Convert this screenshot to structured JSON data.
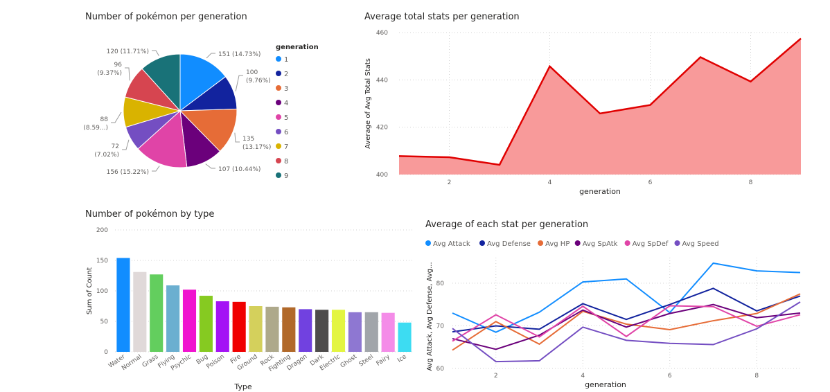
{
  "chart_data": [
    {
      "type": "pie",
      "title": "Number of pokémon per generation",
      "legend_title": "generation",
      "legend_position": "right",
      "categories": [
        "1",
        "2",
        "3",
        "4",
        "5",
        "6",
        "7",
        "8",
        "9"
      ],
      "values": [
        151,
        100,
        135,
        107,
        156,
        72,
        88,
        96,
        120
      ],
      "slice_labels": [
        "151 (14.73%)",
        "100 (9.76%)",
        "135 (13.17%)",
        "107 (10.44%)",
        "156 (15.22%)",
        "72 (7.02%)",
        "88 (8.59...)",
        "96 (9.37%)",
        "120 (11.71%)"
      ],
      "colors": [
        "#118DFF",
        "#12239E",
        "#E66C37",
        "#6B007B",
        "#E044A7",
        "#744EC2",
        "#D9B300",
        "#D64550",
        "#197278"
      ]
    },
    {
      "type": "area",
      "title": "Average total stats per generation",
      "xlabel": "generation",
      "ylabel": "Average of Avg Total Stats",
      "x": [
        1,
        2,
        3,
        4,
        5,
        6,
        7,
        8,
        9
      ],
      "y": [
        407.8,
        407.3,
        404.1,
        445.7,
        425.8,
        429.4,
        449.6,
        439.3,
        457.5
      ],
      "xlim": [
        1,
        9
      ],
      "ylim": [
        400,
        460
      ],
      "xticks": [
        "2",
        "4",
        "6",
        "8"
      ],
      "yticks": [
        "400",
        "420",
        "440",
        "460"
      ],
      "grid": true,
      "colors": {
        "line": "#E00000",
        "fill": "#F89A9A"
      }
    },
    {
      "type": "bar",
      "title": "Number of pokémon by type",
      "xlabel": "Type",
      "ylabel": "Sum of Count",
      "categories": [
        "Water",
        "Normal",
        "Grass",
        "Flying",
        "Psychic",
        "Bug",
        "Poison",
        "Fire",
        "Ground",
        "Rock",
        "Fighting",
        "Dragon",
        "Dark",
        "Electric",
        "Ghost",
        "Steel",
        "Fairy",
        "Ice"
      ],
      "values": [
        154,
        131,
        127,
        109,
        102,
        92,
        83,
        82,
        75,
        74,
        73,
        70,
        69,
        69,
        65,
        65,
        64,
        48
      ],
      "ylim": [
        0,
        200
      ],
      "yticks": [
        "0",
        "50",
        "100",
        "150",
        "200"
      ],
      "grid": true,
      "colors": [
        "#118DFF",
        "#E0D9D9",
        "#63CE5E",
        "#6BAFD0",
        "#F013CF",
        "#86CA21",
        "#A412F5",
        "#F00000",
        "#D4D05C",
        "#AEA98B",
        "#B1692A",
        "#7141E0",
        "#4E4C4C",
        "#E3F542",
        "#8E77D2",
        "#A1A5AA",
        "#F48CE8",
        "#3DDCF2"
      ]
    },
    {
      "type": "line",
      "title": "Average of each stat per generation",
      "xlabel": "generation",
      "ylabel": "Avg Attack, Avg Defense, Avg...",
      "legend_position": "top",
      "x": [
        1,
        2,
        3,
        4,
        5,
        6,
        7,
        8,
        9
      ],
      "xlim": [
        1,
        9
      ],
      "ylim": [
        60,
        86
      ],
      "xticks": [
        "2",
        "4",
        "6",
        "8"
      ],
      "yticks": [
        "60",
        "70",
        "80"
      ],
      "grid": true,
      "series": [
        {
          "name": "Avg Attack",
          "color": "#118DFF",
          "values": [
            73.0,
            68.5,
            73.2,
            80.3,
            81.0,
            73.1,
            84.7,
            82.9,
            82.5
          ]
        },
        {
          "name": "Avg Defense",
          "color": "#12239E",
          "values": [
            68.6,
            70.0,
            69.2,
            75.2,
            71.5,
            75.0,
            78.8,
            73.5,
            77.0
          ]
        },
        {
          "name": "Avg HP",
          "color": "#E66C37",
          "values": [
            64.3,
            71.0,
            65.7,
            73.4,
            70.4,
            69.1,
            71.2,
            72.9,
            77.5
          ]
        },
        {
          "name": "Avg SpAtk",
          "color": "#6B007B",
          "values": [
            67.0,
            64.5,
            67.8,
            73.7,
            69.7,
            72.9,
            75.0,
            71.9,
            73.0
          ]
        },
        {
          "name": "Avg SpDef",
          "color": "#E044A7",
          "values": [
            66.4,
            72.6,
            67.4,
            74.6,
            67.5,
            74.7,
            74.5,
            69.9,
            72.6
          ]
        },
        {
          "name": "Avg Speed",
          "color": "#744EC2",
          "values": [
            69.4,
            61.6,
            61.8,
            69.7,
            66.6,
            65.9,
            65.6,
            69.3,
            75.6
          ]
        }
      ]
    }
  ]
}
